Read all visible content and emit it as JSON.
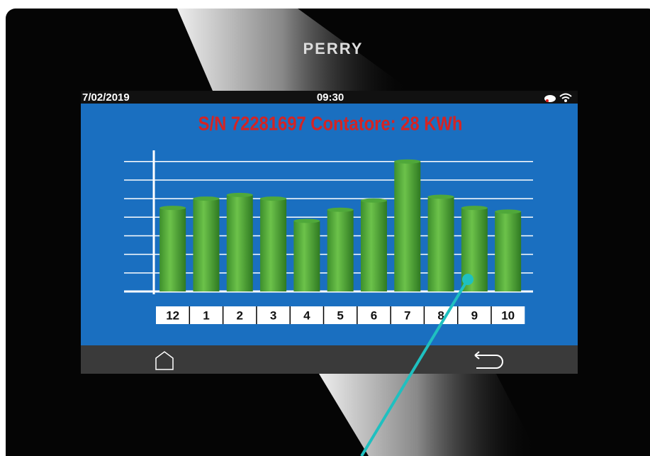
{
  "brand": "PERRY",
  "status_bar": {
    "date": "7/02/2019",
    "time": "09:30"
  },
  "chart_data": {
    "type": "bar",
    "title": "S/N 72281697 Contatore: 28 KWh",
    "categories": [
      "12",
      "1",
      "2",
      "3",
      "4",
      "5",
      "6",
      "7",
      "8",
      "9",
      "10"
    ],
    "values": [
      4.5,
      5.0,
      5.2,
      5.0,
      3.8,
      4.4,
      4.9,
      7.0,
      5.1,
      4.5,
      4.3
    ],
    "color": "#4fa83a",
    "ylim": [
      0,
      7.6
    ],
    "yticks": [
      0,
      1,
      2,
      3,
      4,
      5,
      6,
      7
    ],
    "grid": true
  }
}
